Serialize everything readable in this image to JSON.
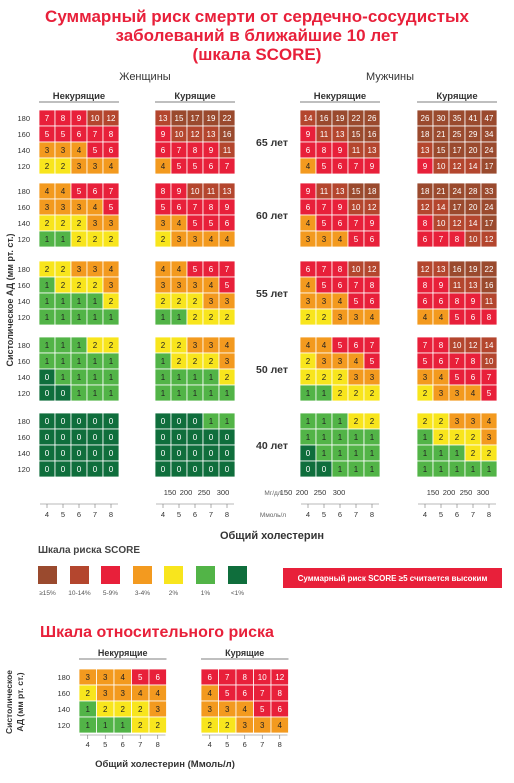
{
  "title_lines": [
    "Суммарный риск смерти от сердечно-сосудистых",
    "заболеваний в ближайшие 10 лет",
    "(шкала SCORE)"
  ],
  "gender_labels": {
    "women": "Женщины",
    "men": "Мужчины"
  },
  "smoke_labels": {
    "nonsmoking": "Некурящие",
    "smoking": "Курящие"
  },
  "y_axis_label": "Систолическое АД (мм рт. ст.)",
  "bp_levels": [
    "180",
    "160",
    "140",
    "120"
  ],
  "ages": [
    "65 лет",
    "60 лет",
    "55 лет",
    "50 лет",
    "40 лет"
  ],
  "chol_mgdl_ticks": [
    "150",
    "200",
    "250",
    "300"
  ],
  "chol_mgdl_unit": "Мг/дл",
  "chol_mmol_ticks": [
    "4",
    "5",
    "6",
    "7",
    "8"
  ],
  "chol_mmol_unit": "Ммоль/л",
  "x_axis_title": "Общий холестерин",
  "legend": {
    "title": "Шкала риска SCORE",
    "items": [
      {
        "label": "≥15%",
        "color": "#9a4a2e"
      },
      {
        "label": "10-14%",
        "color": "#b4462e"
      },
      {
        "label": "5-9%",
        "color": "#e8203a"
      },
      {
        "label": "3-4%",
        "color": "#f39a1f"
      },
      {
        "label": "2%",
        "color": "#f8e51d"
      },
      {
        "label": "1%",
        "color": "#52b447"
      },
      {
        "label": "<1%",
        "color": "#0f6e3c"
      }
    ],
    "note": "Суммарный риск SCORE ≥5 считается высоким",
    "note_color": "#e8203a"
  },
  "relative": {
    "title": "Шкала относительного риска",
    "title_color": "#e8203a",
    "nonsmoking_label": "Некурящие",
    "smoking_label": "Курящие",
    "y_label_line1": "Систолическое",
    "y_label_line2": "АД (мм рт. ст.)",
    "x_title": "Общий холестерин (Ммоль/л)",
    "nonsmoking": [
      [
        3,
        3,
        4,
        5,
        6
      ],
      [
        2,
        3,
        3,
        4,
        4
      ],
      [
        1,
        2,
        2,
        2,
        3
      ],
      [
        1,
        1,
        1,
        2,
        2
      ]
    ],
    "smoking": [
      [
        6,
        7,
        8,
        10,
        12
      ],
      [
        4,
        5,
        6,
        7,
        8
      ],
      [
        3,
        3,
        4,
        5,
        6
      ],
      [
        2,
        2,
        3,
        3,
        4
      ]
    ]
  },
  "chart_data": {
    "type": "heatmap",
    "title": "Суммарный риск смерти от сердечно-сосудистых заболеваний в ближайшие 10 лет (шкала SCORE)",
    "xlabel": "Общий холестерин",
    "ylabel": "Систолическое АД (мм рт. ст.)",
    "x": [
      "4",
      "5",
      "6",
      "7",
      "8"
    ],
    "y": [
      "180",
      "160",
      "140",
      "120"
    ],
    "panels": [
      {
        "age": "65 лет",
        "women_nonsmoking": [
          [
            7,
            8,
            9,
            10,
            12
          ],
          [
            5,
            5,
            6,
            7,
            8
          ],
          [
            3,
            3,
            4,
            5,
            6
          ],
          [
            2,
            2,
            3,
            3,
            4
          ]
        ],
        "women_smoking": [
          [
            13,
            15,
            17,
            19,
            22
          ],
          [
            9,
            10,
            12,
            13,
            16
          ],
          [
            6,
            7,
            8,
            9,
            11
          ],
          [
            4,
            5,
            5,
            6,
            7
          ]
        ],
        "men_nonsmoking": [
          [
            14,
            16,
            19,
            22,
            26
          ],
          [
            9,
            11,
            13,
            15,
            16
          ],
          [
            6,
            8,
            9,
            11,
            13
          ],
          [
            4,
            5,
            6,
            7,
            9
          ]
        ],
        "men_smoking": [
          [
            26,
            30,
            35,
            41,
            47
          ],
          [
            18,
            21,
            25,
            29,
            34
          ],
          [
            13,
            15,
            17,
            20,
            24
          ],
          [
            9,
            10,
            12,
            14,
            17
          ]
        ]
      },
      {
        "age": "60 лет",
        "women_nonsmoking": [
          [
            4,
            4,
            5,
            6,
            7
          ],
          [
            3,
            3,
            3,
            4,
            5
          ],
          [
            2,
            2,
            2,
            3,
            3
          ],
          [
            1,
            1,
            2,
            2,
            2
          ]
        ],
        "women_smoking": [
          [
            8,
            9,
            10,
            11,
            13
          ],
          [
            5,
            6,
            7,
            8,
            9
          ],
          [
            3,
            4,
            5,
            5,
            6
          ],
          [
            2,
            3,
            3,
            4,
            4
          ]
        ],
        "men_nonsmoking": [
          [
            9,
            11,
            13,
            15,
            18
          ],
          [
            6,
            7,
            9,
            10,
            12
          ],
          [
            4,
            5,
            6,
            7,
            9
          ],
          [
            3,
            3,
            4,
            5,
            6
          ]
        ],
        "men_smoking": [
          [
            18,
            21,
            24,
            28,
            33
          ],
          [
            12,
            14,
            17,
            20,
            24
          ],
          [
            8,
            10,
            12,
            14,
            17
          ],
          [
            6,
            7,
            8,
            10,
            12
          ]
        ]
      },
      {
        "age": "55 лет",
        "women_nonsmoking": [
          [
            2,
            2,
            3,
            3,
            4
          ],
          [
            1,
            2,
            2,
            2,
            3
          ],
          [
            1,
            1,
            1,
            1,
            2
          ],
          [
            1,
            1,
            1,
            1,
            1
          ]
        ],
        "women_smoking": [
          [
            4,
            4,
            5,
            6,
            7
          ],
          [
            3,
            3,
            3,
            4,
            5
          ],
          [
            2,
            2,
            2,
            3,
            3
          ],
          [
            1,
            1,
            2,
            2,
            2
          ]
        ],
        "men_nonsmoking": [
          [
            6,
            7,
            8,
            10,
            12
          ],
          [
            4,
            5,
            6,
            7,
            8
          ],
          [
            3,
            3,
            4,
            5,
            6
          ],
          [
            2,
            2,
            3,
            3,
            4
          ]
        ],
        "men_smoking": [
          [
            12,
            13,
            16,
            19,
            22
          ],
          [
            8,
            9,
            11,
            13,
            16
          ],
          [
            6,
            6,
            8,
            9,
            11
          ],
          [
            4,
            4,
            5,
            6,
            8
          ]
        ]
      },
      {
        "age": "50 лет",
        "women_nonsmoking": [
          [
            1,
            1,
            1,
            2,
            2
          ],
          [
            1,
            1,
            1,
            1,
            1
          ],
          [
            0,
            1,
            1,
            1,
            1
          ],
          [
            0,
            0,
            1,
            1,
            1
          ]
        ],
        "women_smoking": [
          [
            2,
            2,
            3,
            3,
            4
          ],
          [
            1,
            2,
            2,
            2,
            3
          ],
          [
            1,
            1,
            1,
            1,
            2
          ],
          [
            1,
            1,
            1,
            1,
            1
          ]
        ],
        "men_nonsmoking": [
          [
            4,
            4,
            5,
            6,
            7
          ],
          [
            2,
            3,
            3,
            4,
            5
          ],
          [
            2,
            2,
            2,
            3,
            3
          ],
          [
            1,
            1,
            2,
            2,
            2
          ]
        ],
        "men_smoking": [
          [
            7,
            8,
            10,
            12,
            14
          ],
          [
            5,
            6,
            7,
            8,
            10
          ],
          [
            3,
            4,
            5,
            6,
            7
          ],
          [
            2,
            3,
            3,
            4,
            5
          ]
        ]
      },
      {
        "age": "40 лет",
        "women_nonsmoking": [
          [
            0,
            0,
            0,
            0,
            0
          ],
          [
            0,
            0,
            0,
            0,
            0
          ],
          [
            0,
            0,
            0,
            0,
            0
          ],
          [
            0,
            0,
            0,
            0,
            0
          ]
        ],
        "women_smoking": [
          [
            0,
            0,
            0,
            1,
            1
          ],
          [
            0,
            0,
            0,
            0,
            0
          ],
          [
            0,
            0,
            0,
            0,
            0
          ],
          [
            0,
            0,
            0,
            0,
            0
          ]
        ],
        "men_nonsmoking": [
          [
            1,
            1,
            1,
            2,
            2
          ],
          [
            1,
            1,
            1,
            1,
            1
          ],
          [
            0,
            1,
            1,
            1,
            1
          ],
          [
            0,
            0,
            1,
            1,
            1
          ]
        ],
        "men_smoking": [
          [
            2,
            2,
            3,
            3,
            4
          ],
          [
            1,
            2,
            2,
            2,
            3
          ],
          [
            1,
            1,
            1,
            2,
            2
          ],
          [
            1,
            1,
            1,
            1,
            1
          ]
        ]
      }
    ]
  }
}
